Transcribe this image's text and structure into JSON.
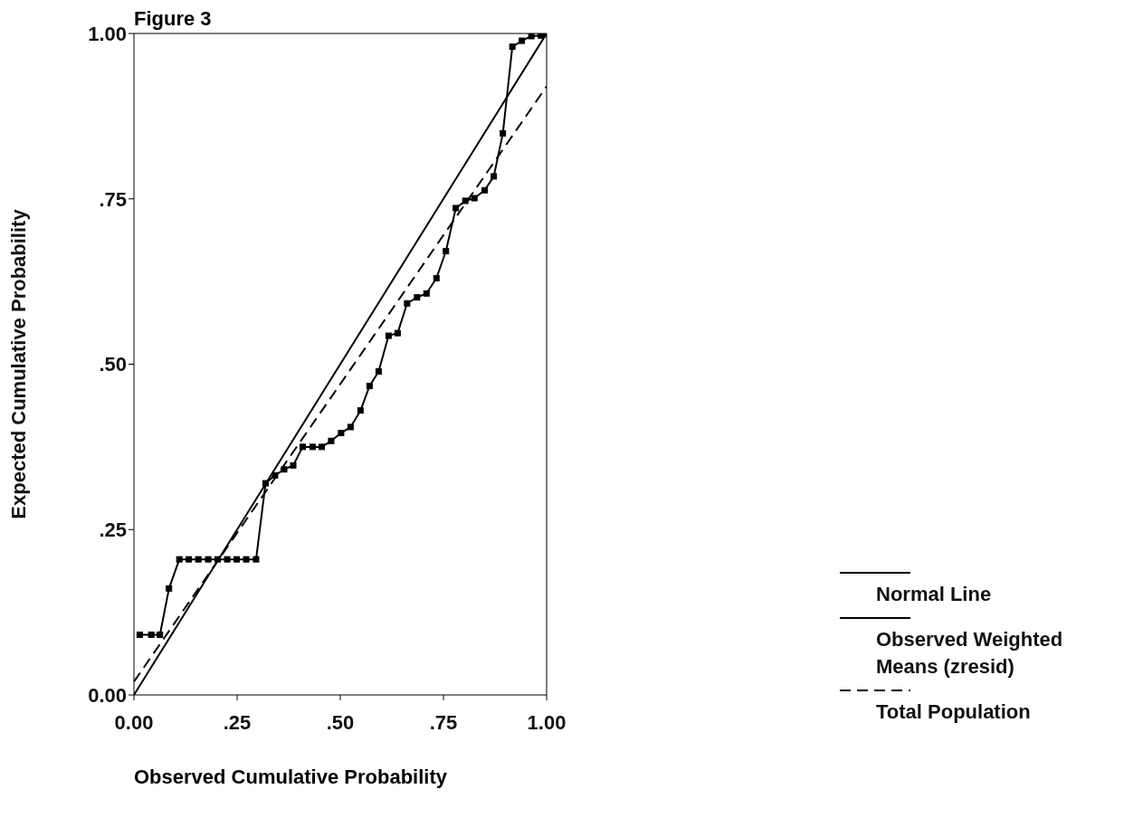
{
  "chart_data": {
    "type": "line",
    "title": "Figure 3",
    "xlabel": "Observed Cumulative Probability",
    "ylabel": "Expected Cumulative Probability",
    "xlim": [
      0,
      1
    ],
    "ylim": [
      0,
      1
    ],
    "xticks": [
      {
        "value": 0,
        "label": "0.00"
      },
      {
        "value": 0.25,
        "label": ".25"
      },
      {
        "value": 0.5,
        "label": ".50"
      },
      {
        "value": 0.75,
        "label": ".75"
      },
      {
        "value": 1,
        "label": "1.00"
      }
    ],
    "yticks": [
      {
        "value": 0,
        "label": "0.00"
      },
      {
        "value": 0.25,
        "label": ".25"
      },
      {
        "value": 0.5,
        "label": ".50"
      },
      {
        "value": 0.75,
        "label": ".75"
      },
      {
        "value": 1,
        "label": "1.00"
      }
    ],
    "legend": "right",
    "line_style": "solid",
    "series": [
      {
        "name": "Normal Line",
        "color": "#000000",
        "marker": "none",
        "x": [
          0,
          1
        ],
        "values": [
          0,
          1
        ]
      },
      {
        "name": "Observed Weighted Means (zresid)",
        "color": "#000000",
        "marker": "square",
        "x": [
          0.014,
          0.042,
          0.063,
          0.085,
          0.11,
          0.133,
          0.156,
          0.18,
          0.203,
          0.226,
          0.249,
          0.272,
          0.296,
          0.319,
          0.342,
          0.364,
          0.386,
          0.409,
          0.433,
          0.455,
          0.478,
          0.502,
          0.525,
          0.549,
          0.571,
          0.593,
          0.617,
          0.639,
          0.662,
          0.686,
          0.709,
          0.733,
          0.756,
          0.78,
          0.803,
          0.825,
          0.85,
          0.872,
          0.894,
          0.917,
          0.94,
          0.963,
          0.986,
          0.997
        ],
        "values": [
          0.091,
          0.091,
          0.091,
          0.161,
          0.205,
          0.205,
          0.205,
          0.205,
          0.205,
          0.205,
          0.205,
          0.205,
          0.205,
          0.32,
          0.332,
          0.341,
          0.347,
          0.375,
          0.375,
          0.375,
          0.384,
          0.396,
          0.405,
          0.43,
          0.467,
          0.489,
          0.543,
          0.547,
          0.592,
          0.601,
          0.607,
          0.63,
          0.671,
          0.736,
          0.747,
          0.751,
          0.763,
          0.784,
          0.849,
          0.98,
          0.989,
          0.996,
          0.997,
          0.999
        ]
      },
      {
        "name": "Total Population",
        "color": "#000000",
        "marker": "none",
        "line_style": "dashed",
        "x": [
          0,
          1
        ],
        "values": [
          0.02,
          0.92
        ]
      }
    ]
  }
}
